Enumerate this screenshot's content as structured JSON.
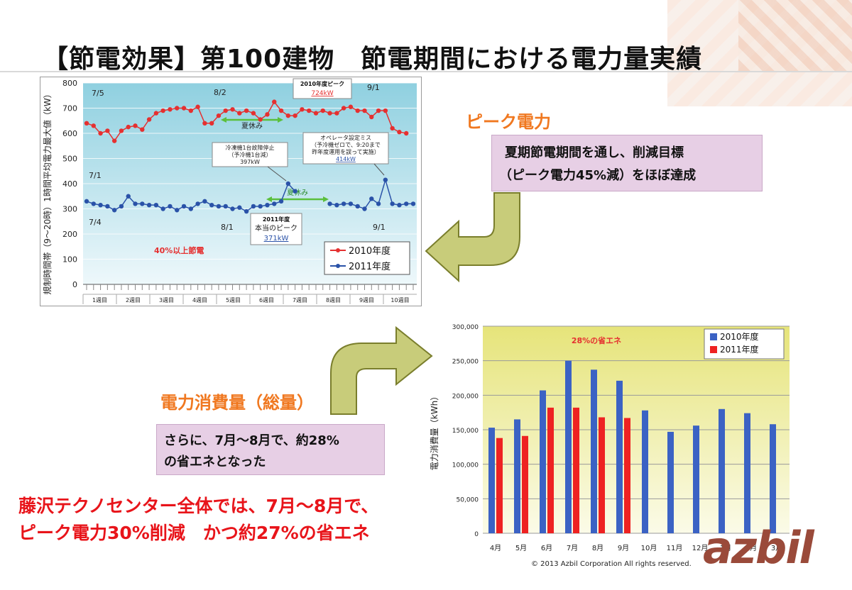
{
  "slide": {
    "title": "【節電効果】第100建物　節電期間における電力量実績",
    "copyright": "© 2013 Azbil Corporation All rights reserved.",
    "logo_text": "azbil"
  },
  "peak": {
    "heading": "ピーク電力",
    "desc_line1": "夏期節電期間を通し、削減目標",
    "desc_line2": "（ピーク電力45%減）をほぼ達成"
  },
  "consumption": {
    "heading": "電力消費量（総量）",
    "desc_line1": "さらに、7月～8月で、約28%",
    "desc_line2": "の省エネとなった"
  },
  "summary": {
    "line1": "藤沢テクノセンター全体では、7月～8月で、",
    "line2": "ピーク電力30%削減　かつ約27%の省エネ"
  },
  "colors": {
    "series2010_line": "#e53030",
    "series2011_line": "#2a52a8",
    "bar2010": "#3b62c4",
    "bar2011": "#ee2222",
    "accent_orange": "#f07820",
    "arrow_green": "#c8cc7a",
    "summary_red": "#e8141a"
  },
  "chart_data": [
    {
      "type": "line",
      "ylabel": "規制時間帯（9～20時）1時間平均電力最大値（kW）",
      "ylim": [
        0,
        800
      ],
      "yticks": [
        "0",
        "100",
        "200",
        "300",
        "400",
        "500",
        "600",
        "700",
        "800"
      ],
      "week_labels": [
        "1週目",
        "2週目",
        "3週目",
        "4週目",
        "5週目",
        "6週目",
        "7週目",
        "8週目",
        "9週目",
        "10週目"
      ],
      "series": [
        {
          "name": "2010年度",
          "values": [
            640,
            630,
            600,
            610,
            570,
            610,
            625,
            630,
            615,
            655,
            680,
            690,
            695,
            700,
            700,
            690,
            705,
            640,
            640,
            670,
            690,
            695,
            680,
            690,
            680,
            655,
            675,
            725,
            690,
            670,
            670,
            695,
            690,
            680,
            690,
            680,
            680,
            700,
            705,
            690,
            690,
            665,
            690,
            690,
            620,
            605,
            600
          ]
        },
        {
          "name": "2011年度",
          "values": [
            330,
            320,
            315,
            310,
            295,
            310,
            350,
            320,
            320,
            315,
            315,
            300,
            310,
            295,
            310,
            300,
            320,
            330,
            315,
            310,
            310,
            300,
            305,
            290,
            310,
            310,
            315,
            320,
            330,
            400,
            370,
            null,
            null,
            null,
            null,
            320,
            315,
            320,
            320,
            310,
            300,
            340,
            320,
            415,
            320,
            315,
            320,
            320
          ]
        }
      ],
      "annotations": {
        "label_7_5": "7/5",
        "label_8_2": "8/2",
        "label_9_1_top": "9/1",
        "label_7_1": "7/1",
        "label_7_4": "7/4",
        "label_8_1": "8/1",
        "label_9_1_bottom": "9/1",
        "summer_break": "夏休み",
        "peak2010_title": "2010年度ピーク",
        "peak2010_value": "724kW",
        "chiller_line1": "冷凍機1台故障停止",
        "chiller_line2": "（予冷機1台減）",
        "chiller_value": "397kW",
        "operator_line1": "オペレータ設定ミス",
        "operator_line2": "（予冷機ゼロで、9:20まで",
        "operator_line3": "昨年度運用を誤って実施）",
        "operator_value": "414kW",
        "true_peak_title": "2011年度",
        "true_peak_line": "本当のピーク",
        "true_peak_value": "371kW",
        "saving_text": "40%以上節電"
      },
      "legend": "bottom-right"
    },
    {
      "type": "bar",
      "categories": [
        "4月",
        "5月",
        "6月",
        "7月",
        "8月",
        "9月",
        "10月",
        "11月",
        "12月",
        "1月",
        "2月",
        "3月"
      ],
      "ylabel": "電力消費量（kWh）",
      "ylim": [
        0,
        300000
      ],
      "yticks": [
        "0",
        "50,000",
        "100,000",
        "150,000",
        "200,000",
        "250,000",
        "300,000"
      ],
      "series": [
        {
          "name": "2010年度",
          "values": [
            153000,
            165000,
            207000,
            250000,
            237000,
            221000,
            178000,
            147000,
            156000,
            180000,
            174000,
            158000
          ]
        },
        {
          "name": "2011年度",
          "values": [
            138000,
            141000,
            182000,
            182000,
            168000,
            167000,
            null,
            null,
            null,
            null,
            null,
            null
          ]
        }
      ],
      "annotation": "28%の省エネ",
      "legend": "top-right"
    }
  ]
}
